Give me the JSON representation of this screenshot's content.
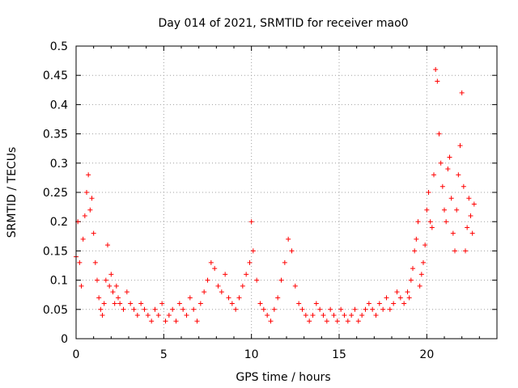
{
  "chart_data": {
    "type": "scatter",
    "title": "Day 014 of 2021, SRMTID for receiver mao0",
    "xlabel": "GPS time / hours",
    "ylabel": "SRMTID / TECUs",
    "xlim": [
      0,
      24
    ],
    "ylim": [
      0,
      0.5
    ],
    "x_ticks": [
      0,
      5,
      10,
      15,
      20
    ],
    "x_tick_labels": [
      "0",
      "5",
      "10",
      "15",
      "20"
    ],
    "y_ticks": [
      0,
      0.05,
      0.1,
      0.15,
      0.2,
      0.25,
      0.3,
      0.35,
      0.4,
      0.45,
      0.5
    ],
    "y_tick_labels": [
      "0",
      "0.05",
      "0.1",
      "0.15",
      "0.2",
      "0.25",
      "0.3",
      "0.35",
      "0.4",
      "0.45",
      "0.5"
    ],
    "grid": true,
    "marker": "plus",
    "marker_color": "#ff0000",
    "series": [
      {
        "name": "SRMTID",
        "x": [
          0.0,
          0.1,
          0.2,
          0.3,
          0.4,
          0.5,
          0.6,
          0.7,
          0.8,
          0.9,
          1.0,
          1.1,
          1.2,
          1.3,
          1.4,
          1.5,
          1.6,
          1.7,
          1.8,
          1.9,
          2.0,
          2.1,
          2.2,
          2.3,
          2.4,
          2.5,
          2.7,
          2.9,
          3.1,
          3.3,
          3.5,
          3.7,
          3.9,
          4.1,
          4.3,
          4.5,
          4.7,
          4.9,
          5.1,
          5.3,
          5.5,
          5.7,
          5.9,
          6.1,
          6.3,
          6.5,
          6.7,
          6.9,
          7.1,
          7.3,
          7.5,
          7.7,
          7.9,
          8.1,
          8.3,
          8.5,
          8.7,
          8.9,
          9.1,
          9.3,
          9.5,
          9.7,
          9.9,
          10.0,
          10.1,
          10.3,
          10.5,
          10.7,
          10.9,
          11.1,
          11.3,
          11.5,
          11.7,
          11.9,
          12.1,
          12.3,
          12.5,
          12.7,
          12.9,
          13.1,
          13.3,
          13.5,
          13.7,
          13.9,
          14.1,
          14.3,
          14.5,
          14.7,
          14.9,
          15.1,
          15.3,
          15.5,
          15.7,
          15.9,
          16.1,
          16.3,
          16.5,
          16.7,
          16.9,
          17.1,
          17.3,
          17.5,
          17.7,
          17.9,
          18.1,
          18.3,
          18.5,
          18.7,
          18.9,
          19.0,
          19.1,
          19.2,
          19.3,
          19.4,
          19.5,
          19.6,
          19.7,
          19.8,
          19.9,
          20.0,
          20.1,
          20.2,
          20.3,
          20.4,
          20.5,
          20.6,
          20.7,
          20.8,
          20.9,
          21.0,
          21.1,
          21.2,
          21.3,
          21.4,
          21.5,
          21.6,
          21.7,
          21.8,
          21.9,
          22.0,
          22.1,
          22.2,
          22.3,
          22.4,
          22.5,
          22.6,
          22.7
        ],
        "y": [
          0.14,
          0.2,
          0.13,
          0.09,
          0.17,
          0.21,
          0.25,
          0.28,
          0.22,
          0.24,
          0.18,
          0.13,
          0.1,
          0.07,
          0.05,
          0.04,
          0.06,
          0.1,
          0.16,
          0.09,
          0.11,
          0.08,
          0.06,
          0.09,
          0.07,
          0.06,
          0.05,
          0.08,
          0.06,
          0.05,
          0.04,
          0.06,
          0.05,
          0.04,
          0.03,
          0.05,
          0.04,
          0.06,
          0.03,
          0.04,
          0.05,
          0.03,
          0.06,
          0.05,
          0.04,
          0.07,
          0.05,
          0.03,
          0.06,
          0.08,
          0.1,
          0.13,
          0.12,
          0.09,
          0.08,
          0.11,
          0.07,
          0.06,
          0.05,
          0.07,
          0.09,
          0.11,
          0.13,
          0.2,
          0.15,
          0.1,
          0.06,
          0.05,
          0.04,
          0.03,
          0.05,
          0.07,
          0.1,
          0.13,
          0.17,
          0.15,
          0.09,
          0.06,
          0.05,
          0.04,
          0.03,
          0.04,
          0.06,
          0.05,
          0.04,
          0.03,
          0.05,
          0.04,
          0.03,
          0.05,
          0.04,
          0.03,
          0.04,
          0.05,
          0.03,
          0.04,
          0.05,
          0.06,
          0.05,
          0.04,
          0.06,
          0.05,
          0.07,
          0.05,
          0.06,
          0.08,
          0.07,
          0.06,
          0.08,
          0.07,
          0.1,
          0.12,
          0.15,
          0.17,
          0.2,
          0.09,
          0.11,
          0.13,
          0.16,
          0.22,
          0.25,
          0.2,
          0.19,
          0.28,
          0.46,
          0.44,
          0.35,
          0.3,
          0.26,
          0.22,
          0.2,
          0.29,
          0.31,
          0.24,
          0.18,
          0.15,
          0.22,
          0.28,
          0.33,
          0.42,
          0.26,
          0.15,
          0.19,
          0.24,
          0.21,
          0.18,
          0.23
        ]
      }
    ]
  }
}
